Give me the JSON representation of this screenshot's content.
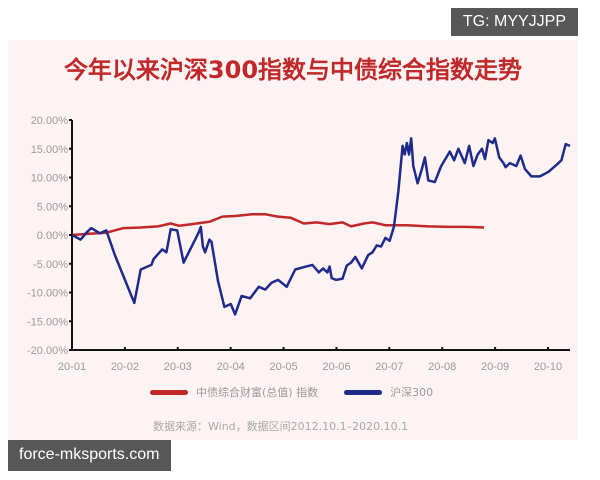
{
  "badges": {
    "top_right": "TG: MYYJJPP",
    "bottom_left": "force-mksports.com"
  },
  "colors": {
    "panel_bg": "#fdf3f3",
    "title": "#c0282a",
    "bond_index": "#c0282a",
    "csi300": "#1f2a8a",
    "axis": "#111111",
    "label_gray": "#9a9a9a"
  },
  "legend": {
    "bond": "中债综合财富(总值) 指数",
    "csi300": "沪深300"
  },
  "source_note": "数据来源：Wind，数据区间2012.10.1–2020.10.1",
  "chart_data": {
    "type": "line",
    "title": "今年以来沪深300指数与中债综合指数走势",
    "xlabel": "",
    "ylabel": "",
    "x_ticks": [
      "20-01",
      "20-02",
      "20-03",
      "20-04",
      "20-05",
      "20-06",
      "20-07",
      "20-08",
      "20-09",
      "20-10"
    ],
    "y_ticks": [
      "20.00%",
      "15.00%",
      "10.00%",
      "5.00%",
      "0.00%",
      "-5.00%",
      "-10.00%",
      "-15.00%",
      "-20.00%"
    ],
    "ylim": [
      -20,
      20
    ],
    "grid": false,
    "legend_position": "bottom",
    "series": [
      {
        "name": "中债综合财富(总值) 指数",
        "color": "#c0282a",
        "points": [
          [
            0.0,
            0.0
          ],
          [
            0.4,
            0.2
          ],
          [
            0.8,
            0.4
          ],
          [
            1.2,
            1.2
          ],
          [
            1.6,
            1.3
          ],
          [
            2.0,
            1.5
          ],
          [
            2.3,
            2.0
          ],
          [
            2.5,
            1.6
          ],
          [
            2.8,
            1.9
          ],
          [
            3.2,
            2.3
          ],
          [
            3.5,
            3.2
          ],
          [
            3.8,
            3.3
          ],
          [
            4.2,
            3.6
          ],
          [
            4.5,
            3.6
          ],
          [
            4.8,
            3.2
          ],
          [
            5.1,
            3.0
          ],
          [
            5.4,
            2.0
          ],
          [
            5.7,
            2.2
          ],
          [
            6.0,
            1.9
          ],
          [
            6.3,
            2.2
          ],
          [
            6.5,
            1.5
          ],
          [
            6.8,
            2.0
          ],
          [
            7.0,
            2.2
          ],
          [
            7.3,
            1.7
          ],
          [
            7.8,
            1.7
          ],
          [
            8.3,
            1.5
          ],
          [
            8.8,
            1.4
          ],
          [
            9.2,
            1.4
          ],
          [
            9.6,
            1.3
          ]
        ]
      },
      {
        "name": "沪深300",
        "color": "#1f2a8a",
        "points": [
          [
            0.0,
            0.0
          ],
          [
            0.2,
            -0.8
          ],
          [
            0.35,
            0.5
          ],
          [
            0.45,
            1.2
          ],
          [
            0.65,
            0.3
          ],
          [
            0.8,
            0.8
          ],
          [
            0.85,
            -0.3
          ],
          [
            1.0,
            -3.5
          ],
          [
            1.45,
            -11.8
          ],
          [
            1.6,
            -6.0
          ],
          [
            1.85,
            -5.2
          ],
          [
            1.9,
            -4.2
          ],
          [
            2.1,
            -2.5
          ],
          [
            2.2,
            -3.0
          ],
          [
            2.3,
            1.0
          ],
          [
            2.45,
            0.8
          ],
          [
            2.6,
            -4.8
          ],
          [
            2.95,
            0.4
          ],
          [
            3.0,
            1.4
          ],
          [
            3.05,
            -2.0
          ],
          [
            3.1,
            -3.0
          ],
          [
            3.2,
            -0.8
          ],
          [
            3.25,
            -1.2
          ],
          [
            3.4,
            -8.0
          ],
          [
            3.55,
            -12.5
          ],
          [
            3.7,
            -12.0
          ],
          [
            3.8,
            -13.8
          ],
          [
            3.95,
            -10.6
          ],
          [
            4.15,
            -11.0
          ],
          [
            4.35,
            -9.0
          ],
          [
            4.5,
            -9.5
          ],
          [
            4.65,
            -8.3
          ],
          [
            4.8,
            -7.8
          ],
          [
            5.0,
            -9.0
          ],
          [
            5.2,
            -6.0
          ],
          [
            5.45,
            -5.5
          ],
          [
            5.6,
            -5.2
          ],
          [
            5.75,
            -6.5
          ],
          [
            5.85,
            -5.8
          ],
          [
            5.95,
            -6.5
          ],
          [
            6.0,
            -5.5
          ],
          [
            6.05,
            -7.5
          ],
          [
            6.15,
            -7.8
          ],
          [
            6.3,
            -7.6
          ],
          [
            6.4,
            -5.3
          ],
          [
            6.5,
            -4.8
          ],
          [
            6.6,
            -3.8
          ],
          [
            6.75,
            -5.8
          ],
          [
            6.9,
            -3.5
          ],
          [
            7.0,
            -3.0
          ],
          [
            7.1,
            -1.8
          ],
          [
            7.2,
            -2.0
          ],
          [
            7.3,
            -0.5
          ],
          [
            7.4,
            -1.0
          ],
          [
            7.5,
            1.5
          ],
          [
            7.6,
            7.5
          ],
          [
            7.7,
            15.5
          ],
          [
            7.75,
            14.0
          ],
          [
            7.8,
            16.0
          ],
          [
            7.85,
            14.0
          ],
          [
            7.9,
            16.8
          ],
          [
            7.95,
            12.0
          ],
          [
            8.05,
            9.0
          ],
          [
            8.15,
            11.5
          ],
          [
            8.22,
            13.5
          ],
          [
            8.3,
            9.5
          ],
          [
            8.45,
            9.2
          ],
          [
            8.6,
            12.0
          ],
          [
            8.8,
            14.5
          ],
          [
            8.9,
            13.0
          ],
          [
            9.0,
            15.0
          ],
          [
            9.15,
            12.5
          ],
          [
            9.25,
            15.5
          ],
          [
            9.35,
            12.0
          ],
          [
            9.45,
            14.0
          ],
          [
            9.55,
            15.0
          ],
          [
            9.62,
            13.2
          ],
          [
            9.7,
            16.5
          ],
          [
            9.8,
            16.0
          ],
          [
            9.85,
            16.8
          ],
          [
            9.95,
            13.5
          ],
          [
            10.05,
            12.5
          ],
          [
            10.1,
            11.8
          ],
          [
            10.2,
            12.5
          ],
          [
            10.35,
            12.0
          ],
          [
            10.45,
            13.8
          ],
          [
            10.55,
            11.5
          ],
          [
            10.7,
            10.2
          ],
          [
            10.9,
            10.2
          ],
          [
            11.1,
            11.0
          ],
          [
            11.3,
            12.3
          ],
          [
            11.4,
            13.0
          ],
          [
            11.5,
            15.8
          ],
          [
            11.6,
            15.5
          ]
        ]
      }
    ]
  }
}
